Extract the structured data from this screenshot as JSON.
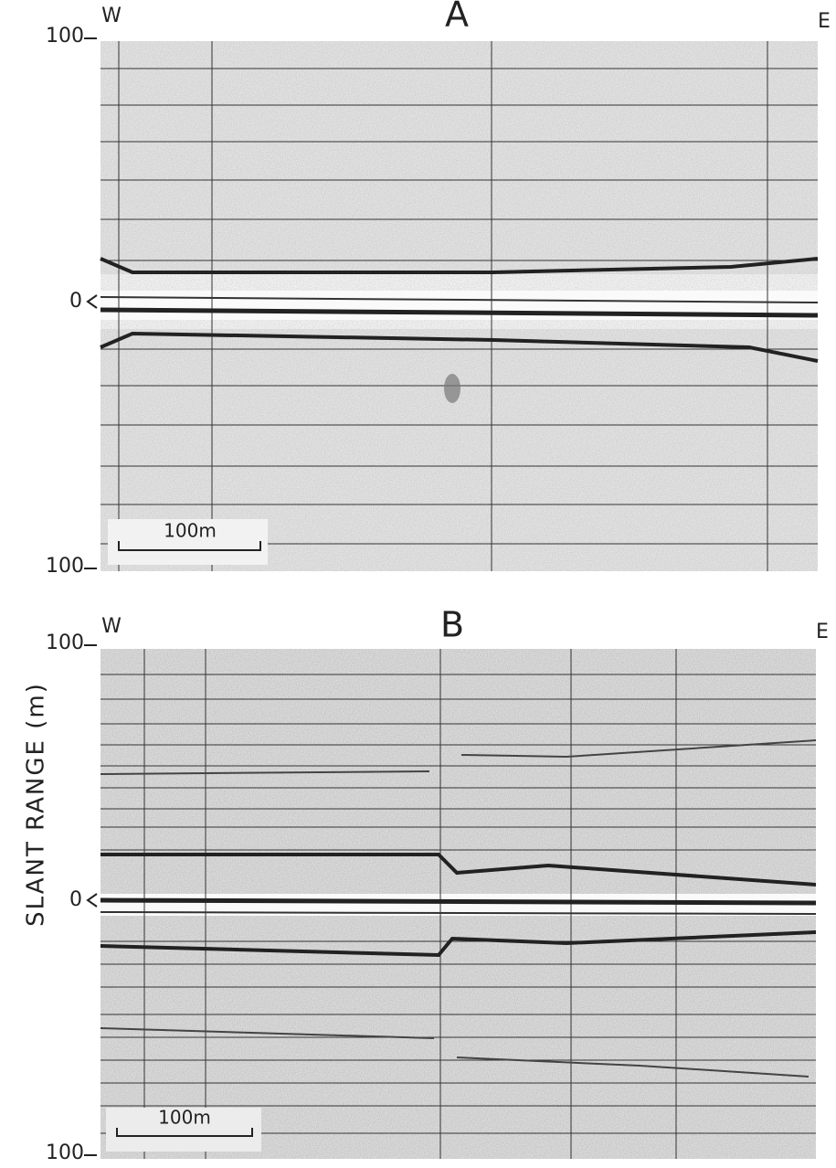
{
  "axis_label": "SLANT RANGE (m)",
  "panels": [
    {
      "label": "A",
      "west": "W",
      "east": "E",
      "ticks": [
        "100",
        "0",
        "100"
      ],
      "scale_bar": "100m"
    },
    {
      "label": "B",
      "west": "W",
      "east": "E",
      "ticks": [
        "100",
        "0",
        "100"
      ],
      "scale_bar": "100m"
    }
  ]
}
